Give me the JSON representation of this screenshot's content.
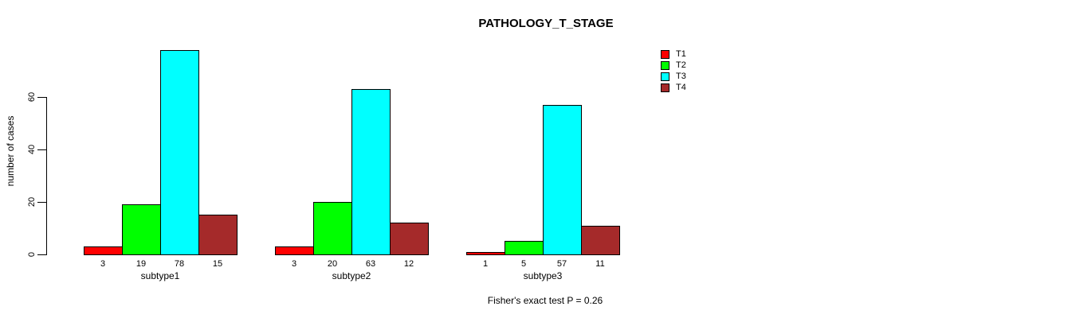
{
  "chart_data": {
    "type": "bar",
    "title": "PATHOLOGY_T_STAGE",
    "ylabel": "number of cases",
    "xlabel": "",
    "yticks": [
      0,
      20,
      40,
      60
    ],
    "ylim": [
      0,
      78
    ],
    "grid": false,
    "legend_position": "topright",
    "bar_value_labels": true,
    "categories": [
      "subtype1",
      "subtype2",
      "subtype3"
    ],
    "series": [
      {
        "name": "T1",
        "color": "#ff0000",
        "values": [
          3,
          3,
          1
        ]
      },
      {
        "name": "T2",
        "color": "#00ff00",
        "values": [
          19,
          20,
          5
        ]
      },
      {
        "name": "T3",
        "color": "#00ffff",
        "values": [
          78,
          63,
          57
        ]
      },
      {
        "name": "T4",
        "color": "#a52a2a",
        "values": [
          15,
          12,
          11
        ]
      }
    ],
    "annotation": "Fisher's exact test P = 0.26"
  },
  "colors": {
    "background": "#ffffff",
    "axis": "#000000",
    "text": "#000000"
  }
}
